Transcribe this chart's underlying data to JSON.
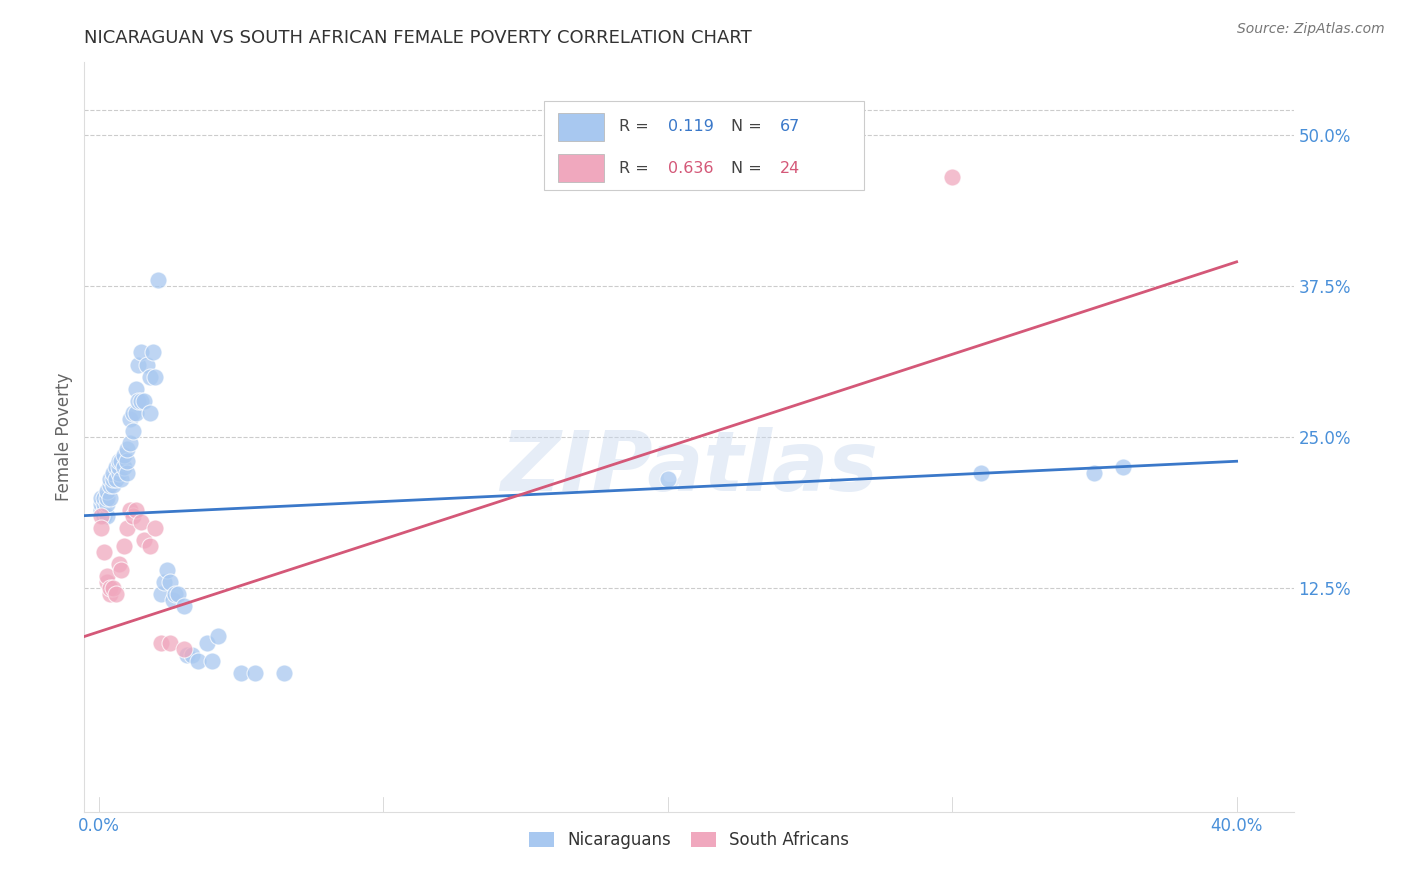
{
  "title": "NICARAGUAN VS SOUTH AFRICAN FEMALE POVERTY CORRELATION CHART",
  "source": "Source: ZipAtlas.com",
  "ylabel": "Female Poverty",
  "ytick_labels": [
    "12.5%",
    "25.0%",
    "37.5%",
    "50.0%"
  ],
  "ytick_values": [
    0.125,
    0.25,
    0.375,
    0.5
  ],
  "xtick_labels": [
    "0.0%",
    "40.0%"
  ],
  "xtick_positions": [
    0.0,
    0.4
  ],
  "xlim": [
    -0.005,
    0.42
  ],
  "ylim": [
    -0.06,
    0.56
  ],
  "watermark": "ZIPatlas",
  "legend_blue_R": "0.119",
  "legend_blue_N": "67",
  "legend_pink_R": "0.636",
  "legend_pink_N": "24",
  "legend_label_blue": "Nicaraguans",
  "legend_label_pink": "South Africans",
  "blue_color": "#a8c8f0",
  "pink_color": "#f0a8be",
  "blue_line_color": "#3a78c9",
  "pink_line_color": "#d45878",
  "axis_label_color": "#4a90d9",
  "blue_line_start_y": 0.185,
  "blue_line_end_y": 0.23,
  "pink_line_start_y": 0.085,
  "pink_line_end_y": 0.395,
  "blue_points_x": [
    0.001,
    0.001,
    0.001,
    0.002,
    0.002,
    0.002,
    0.002,
    0.003,
    0.003,
    0.003,
    0.003,
    0.004,
    0.004,
    0.004,
    0.005,
    0.005,
    0.005,
    0.006,
    0.006,
    0.007,
    0.007,
    0.007,
    0.008,
    0.008,
    0.009,
    0.009,
    0.01,
    0.01,
    0.01,
    0.011,
    0.011,
    0.012,
    0.012,
    0.013,
    0.013,
    0.014,
    0.014,
    0.015,
    0.015,
    0.016,
    0.017,
    0.018,
    0.018,
    0.019,
    0.02,
    0.021,
    0.022,
    0.023,
    0.024,
    0.025,
    0.026,
    0.027,
    0.028,
    0.03,
    0.031,
    0.033,
    0.035,
    0.038,
    0.04,
    0.042,
    0.05,
    0.055,
    0.065,
    0.2,
    0.31,
    0.35,
    0.36
  ],
  "blue_points_y": [
    0.19,
    0.195,
    0.2,
    0.185,
    0.19,
    0.195,
    0.2,
    0.185,
    0.195,
    0.2,
    0.205,
    0.2,
    0.21,
    0.215,
    0.21,
    0.215,
    0.22,
    0.215,
    0.225,
    0.22,
    0.225,
    0.23,
    0.215,
    0.23,
    0.225,
    0.235,
    0.22,
    0.23,
    0.24,
    0.245,
    0.265,
    0.255,
    0.27,
    0.29,
    0.27,
    0.28,
    0.31,
    0.28,
    0.32,
    0.28,
    0.31,
    0.27,
    0.3,
    0.32,
    0.3,
    0.38,
    0.12,
    0.13,
    0.14,
    0.13,
    0.115,
    0.12,
    0.12,
    0.11,
    0.07,
    0.07,
    0.065,
    0.08,
    0.065,
    0.085,
    0.055,
    0.055,
    0.055,
    0.215,
    0.22,
    0.22,
    0.225
  ],
  "pink_points_x": [
    0.001,
    0.001,
    0.002,
    0.003,
    0.003,
    0.004,
    0.004,
    0.005,
    0.006,
    0.007,
    0.008,
    0.009,
    0.01,
    0.011,
    0.012,
    0.013,
    0.015,
    0.016,
    0.018,
    0.02,
    0.022,
    0.025,
    0.03,
    0.3
  ],
  "pink_points_y": [
    0.185,
    0.175,
    0.155,
    0.13,
    0.135,
    0.12,
    0.125,
    0.125,
    0.12,
    0.145,
    0.14,
    0.16,
    0.175,
    0.19,
    0.185,
    0.19,
    0.18,
    0.165,
    0.16,
    0.175,
    0.08,
    0.08,
    0.075,
    0.465
  ]
}
